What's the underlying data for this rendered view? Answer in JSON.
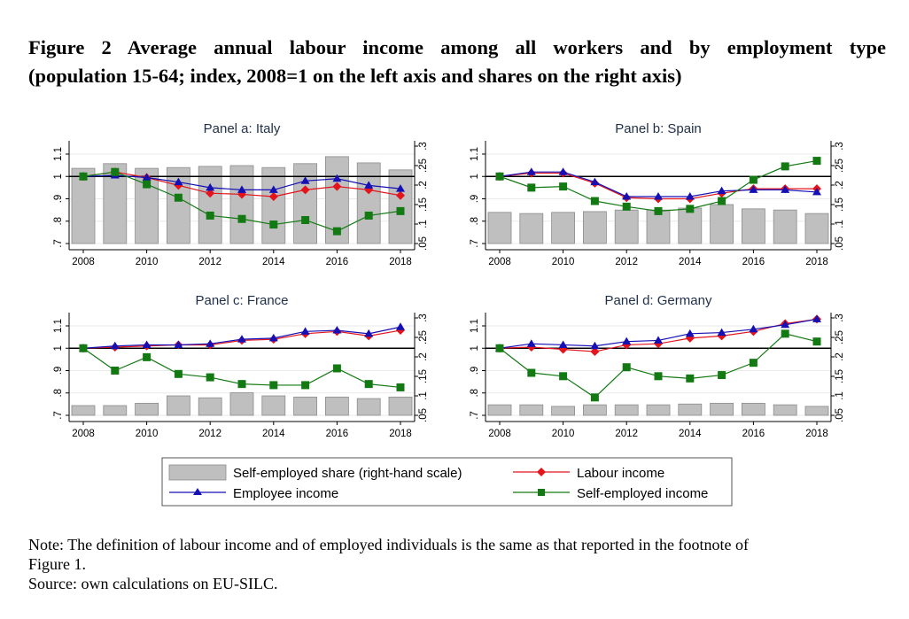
{
  "title": {
    "line1": "Figure 2 Average annual labour income among all workers and by employment type",
    "line2": "(population 15-64; index, 2008=1 on the left axis and shares on the right axis)"
  },
  "note": {
    "line1": "Note: The definition of labour income and of employed individuals is the same as that reported in the footnote of",
    "line2": "Figure 1.",
    "line3": "Source: own calculations on EU-SILC."
  },
  "legend": {
    "items": [
      {
        "key": "share",
        "label": "Self-employed share (right-hand scale)"
      },
      {
        "key": "labour",
        "label": "Labour income"
      },
      {
        "key": "employee",
        "label": "Employee income"
      },
      {
        "key": "selfemp",
        "label": "Self-employed income"
      }
    ]
  },
  "colors": {
    "labour": "#e3141b",
    "employee": "#1410b4",
    "selfemp": "#137a13",
    "bar_fill": "#bfbfbf",
    "bar_stroke": "#8c8c8c",
    "panel_title": "#1f2f47"
  },
  "chart_data": [
    {
      "type": "bar+line",
      "title": "Panel a: Italy",
      "x": [
        2008,
        2009,
        2010,
        2011,
        2012,
        2013,
        2014,
        2015,
        2016,
        2017,
        2018
      ],
      "xticks": [
        "2008",
        "2010",
        "2012",
        "2014",
        "2016",
        "2018"
      ],
      "yticks_left": [
        "1.1",
        "1",
        ".9",
        ".8",
        ".7"
      ],
      "yticks_right": [
        ".3",
        ".25",
        ".2",
        ".15",
        ".1",
        ".05"
      ],
      "ylim_left": [
        0.7,
        1.1
      ],
      "ylim_right": [
        0.05,
        0.3
      ],
      "reference_line": 1,
      "series": [
        {
          "name": "Self-employed share (right-hand scale)",
          "axis": "right",
          "kind": "bar",
          "values": [
            0.243,
            0.255,
            0.243,
            0.245,
            0.248,
            0.25,
            0.245,
            0.255,
            0.273,
            0.257,
            0.239
          ]
        },
        {
          "name": "Labour income",
          "axis": "left",
          "kind": "line",
          "values": [
            1.0,
            1.02,
            0.995,
            0.96,
            0.925,
            0.92,
            0.91,
            0.94,
            0.955,
            0.94,
            0.915
          ]
        },
        {
          "name": "Employee income",
          "axis": "left",
          "kind": "line",
          "values": [
            1.0,
            1.005,
            0.995,
            0.975,
            0.95,
            0.94,
            0.94,
            0.98,
            0.99,
            0.96,
            0.945
          ]
        },
        {
          "name": "Self-employed income",
          "axis": "left",
          "kind": "line",
          "values": [
            1.0,
            1.02,
            0.965,
            0.905,
            0.825,
            0.81,
            0.785,
            0.805,
            0.755,
            0.825,
            0.845
          ]
        }
      ]
    },
    {
      "type": "bar+line",
      "title": "Panel b: Spain",
      "x": [
        2008,
        2009,
        2010,
        2011,
        2012,
        2013,
        2014,
        2015,
        2016,
        2017,
        2018
      ],
      "xticks": [
        "2008",
        "2010",
        "2012",
        "2014",
        "2016",
        "2018"
      ],
      "yticks_left": [
        "1.1",
        "1",
        ".9",
        ".8",
        ".7"
      ],
      "yticks_right": [
        ".3",
        ".25",
        ".2",
        ".15",
        ".1",
        ".05"
      ],
      "ylim_left": [
        0.7,
        1.1
      ],
      "ylim_right": [
        0.05,
        0.3
      ],
      "reference_line": 1,
      "series": [
        {
          "name": "Self-employed share (right-hand scale)",
          "axis": "right",
          "kind": "bar",
          "values": [
            0.13,
            0.127,
            0.13,
            0.132,
            0.136,
            0.136,
            0.141,
            0.15,
            0.139,
            0.136,
            0.127
          ]
        },
        {
          "name": "Labour income",
          "axis": "left",
          "kind": "line",
          "values": [
            1.0,
            1.015,
            1.015,
            0.97,
            0.905,
            0.9,
            0.9,
            0.925,
            0.945,
            0.945,
            0.945
          ]
        },
        {
          "name": "Employee income",
          "axis": "left",
          "kind": "line",
          "values": [
            1.0,
            1.02,
            1.02,
            0.975,
            0.91,
            0.91,
            0.91,
            0.935,
            0.94,
            0.94,
            0.93
          ]
        },
        {
          "name": "Self-employed income",
          "axis": "left",
          "kind": "line",
          "values": [
            1.0,
            0.95,
            0.955,
            0.89,
            0.865,
            0.845,
            0.855,
            0.89,
            0.985,
            1.045,
            1.07
          ]
        }
      ]
    },
    {
      "type": "bar+line",
      "title": "Panel c: France",
      "x": [
        2008,
        2009,
        2010,
        2011,
        2012,
        2013,
        2014,
        2015,
        2016,
        2017,
        2018
      ],
      "xticks": [
        "2008",
        "2010",
        "2012",
        "2014",
        "2016",
        "2018"
      ],
      "yticks_left": [
        "1.1",
        "1",
        ".9",
        ".8",
        ".7"
      ],
      "yticks_right": [
        ".3",
        ".25",
        ".2",
        ".15",
        ".1",
        ".05"
      ],
      "ylim_left": [
        0.7,
        1.1
      ],
      "ylim_right": [
        0.05,
        0.3
      ],
      "reference_line": 1,
      "series": [
        {
          "name": "Self-employed share (right-hand scale)",
          "axis": "right",
          "kind": "bar",
          "values": [
            0.075,
            0.075,
            0.081,
            0.1,
            0.095,
            0.108,
            0.1,
            0.097,
            0.097,
            0.093,
            0.097
          ]
        },
        {
          "name": "Labour income",
          "axis": "left",
          "kind": "line",
          "values": [
            1.0,
            1.005,
            1.01,
            1.015,
            1.015,
            1.035,
            1.04,
            1.065,
            1.075,
            1.055,
            1.08
          ]
        },
        {
          "name": "Employee income",
          "axis": "left",
          "kind": "line",
          "values": [
            1.0,
            1.01,
            1.015,
            1.015,
            1.02,
            1.04,
            1.045,
            1.075,
            1.08,
            1.065,
            1.095
          ]
        },
        {
          "name": "Self-employed income",
          "axis": "left",
          "kind": "line",
          "values": [
            1.0,
            0.9,
            0.96,
            0.885,
            0.87,
            0.84,
            0.835,
            0.835,
            0.91,
            0.84,
            0.825
          ]
        }
      ]
    },
    {
      "type": "bar+line",
      "title": "Panel d: Germany",
      "x": [
        2008,
        2009,
        2010,
        2011,
        2012,
        2013,
        2014,
        2015,
        2016,
        2017,
        2018
      ],
      "xticks": [
        "2008",
        "2010",
        "2012",
        "2014",
        "2016",
        "2018"
      ],
      "yticks_left": [
        "1.1",
        "1",
        ".9",
        ".8",
        ".7"
      ],
      "yticks_right": [
        ".3",
        ".25",
        ".2",
        ".15",
        ".1",
        ".05"
      ],
      "ylim_left": [
        0.7,
        1.1
      ],
      "ylim_right": [
        0.05,
        0.3
      ],
      "reference_line": 1,
      "series": [
        {
          "name": "Self-employed share (right-hand scale)",
          "axis": "right",
          "kind": "bar",
          "values": [
            0.077,
            0.077,
            0.073,
            0.077,
            0.077,
            0.077,
            0.079,
            0.081,
            0.081,
            0.077,
            0.073
          ]
        },
        {
          "name": "Labour income",
          "axis": "left",
          "kind": "line",
          "values": [
            1.0,
            1.005,
            0.995,
            0.985,
            1.015,
            1.02,
            1.045,
            1.055,
            1.075,
            1.11,
            1.13
          ]
        },
        {
          "name": "Employee income",
          "axis": "left",
          "kind": "line",
          "values": [
            1.0,
            1.02,
            1.015,
            1.01,
            1.03,
            1.035,
            1.065,
            1.07,
            1.085,
            1.105,
            1.13
          ]
        },
        {
          "name": "Self-employed income",
          "axis": "left",
          "kind": "line",
          "values": [
            1.0,
            0.89,
            0.875,
            0.78,
            0.915,
            0.875,
            0.865,
            0.88,
            0.935,
            1.065,
            1.03
          ]
        }
      ]
    }
  ]
}
